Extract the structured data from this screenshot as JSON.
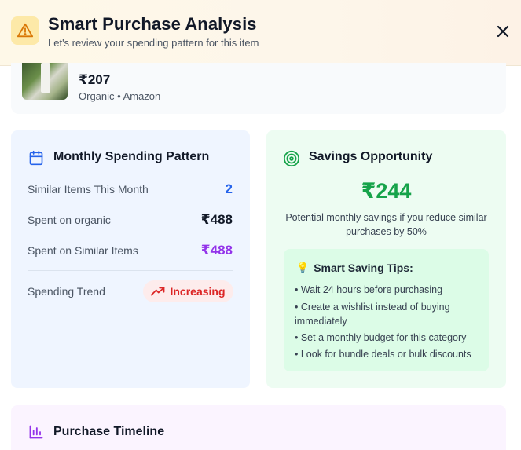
{
  "header": {
    "title": "Smart Purchase Analysis",
    "subtitle": "Let's review your spending pattern for this item",
    "icons": {
      "warning": "warning-icon",
      "close": "close-icon"
    }
  },
  "product": {
    "price": "₹207",
    "meta": "Organic • Amazon"
  },
  "monthly": {
    "title": "Monthly Spending Pattern",
    "icon": "calendar-icon",
    "rows": [
      {
        "label": "Similar Items This Month",
        "value": "2",
        "color": "#2563eb"
      },
      {
        "label": "Spent on organic",
        "value": "₹488",
        "color": "#111827"
      },
      {
        "label": "Spent on Similar Items",
        "value": "₹488",
        "color": "#9333ea"
      }
    ],
    "trend": {
      "label": "Spending Trend",
      "value": "Increasing",
      "icon": "trending-up-icon",
      "color": "#dc2626"
    }
  },
  "savings": {
    "title": "Savings Opportunity",
    "icon": "target-icon",
    "amount": "₹244",
    "description": "Potential monthly savings if you reduce similar purchases by 50%",
    "tips": {
      "title": "Smart Saving Tips:",
      "icon": "lightbulb-icon",
      "items": [
        "• Wait 24 hours before purchasing",
        "• Create a wishlist instead of buying immediately",
        "• Set a monthly budget for this category",
        "• Look for bundle deals or bulk discounts"
      ]
    }
  },
  "timeline": {
    "title": "Purchase Timeline",
    "icon": "bar-chart-icon"
  },
  "colors": {
    "accent_green": "#16a34a",
    "accent_blue": "#2563eb",
    "accent_purple": "#9333ea",
    "accent_red": "#dc2626"
  }
}
